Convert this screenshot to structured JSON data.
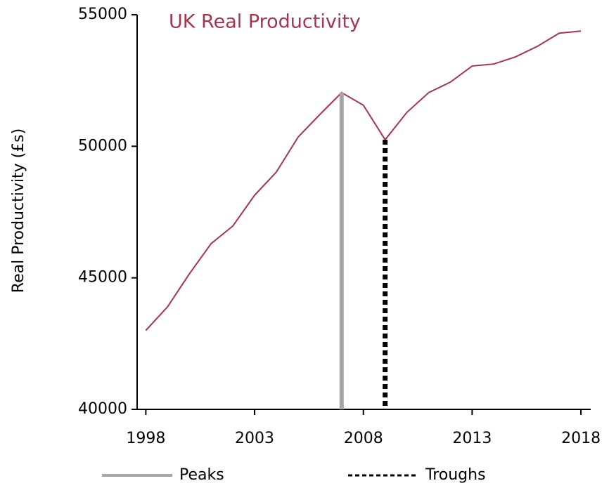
{
  "chart_data": {
    "type": "line",
    "title": "UK Real Productivity",
    "y_label": "Real Productivity (£s)",
    "x": [
      1998,
      1999,
      2000,
      2001,
      2002,
      2003,
      2004,
      2005,
      2006,
      2007,
      2008,
      2009,
      2010,
      2011,
      2012,
      2013,
      2014,
      2015,
      2016,
      2017,
      2018
    ],
    "series": [
      {
        "name": "UK Real Productivity",
        "color": "#a8334d",
        "values": [
          43000,
          43900,
          45150,
          46300,
          46970,
          48140,
          49020,
          50350,
          51210,
          52040,
          51560,
          50250,
          51290,
          52040,
          52440,
          53050,
          53130,
          53400,
          53800,
          54300,
          54380
        ]
      }
    ],
    "markers": [
      {
        "name": "Peaks",
        "color": "#a6a6a6",
        "style": "solid",
        "x": [
          2007
        ]
      },
      {
        "name": "Troughs",
        "color": "#000000",
        "style": "dashed",
        "x": [
          2009
        ]
      }
    ],
    "xlim": [
      1997.6,
      2018.45
    ],
    "xticks": [
      1998,
      2003,
      2008,
      2013,
      2018
    ],
    "ylim": [
      40000,
      55000
    ],
    "yticks": [
      40000,
      45000,
      50000,
      55000
    ]
  }
}
